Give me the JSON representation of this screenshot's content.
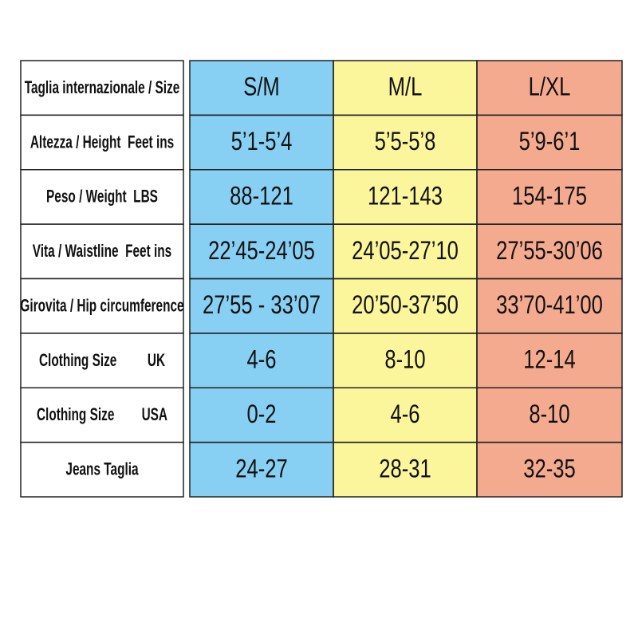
{
  "table": {
    "header": {
      "label": "Taglia internazionale / Size",
      "columns": [
        "S/M",
        "M/L",
        "L/XL"
      ]
    },
    "rows": [
      {
        "label": "Altezza / Height  Feet ins",
        "values": [
          "5’1-5’4",
          "5’5-5’8",
          "5’9-6’1"
        ]
      },
      {
        "label": "Peso / Weight  LBS",
        "values": [
          "88-121",
          "121-143",
          "154-175"
        ]
      },
      {
        "label": "Vita / Waistline  Feet ins",
        "values": [
          "22’45-24’05",
          "24’05-27’10",
          "27’55-30’06"
        ]
      },
      {
        "label": "Girovita / Hip circumference",
        "values": [
          "27’55 - 33’07",
          "20’50-37’50",
          "33’70-41’00"
        ]
      },
      {
        "label": "Clothing Size         UK",
        "values": [
          "4-6",
          "8-10",
          "12-14"
        ]
      },
      {
        "label": "Clothing Size        USA",
        "values": [
          "0-2",
          "4-6",
          "8-10"
        ]
      },
      {
        "label": "Jeans Taglia",
        "values": [
          "24-27",
          "28-31",
          "32-35"
        ]
      }
    ],
    "column_colors": [
      "#87d0f4",
      "#fbf59c",
      "#f4aa8f"
    ]
  }
}
